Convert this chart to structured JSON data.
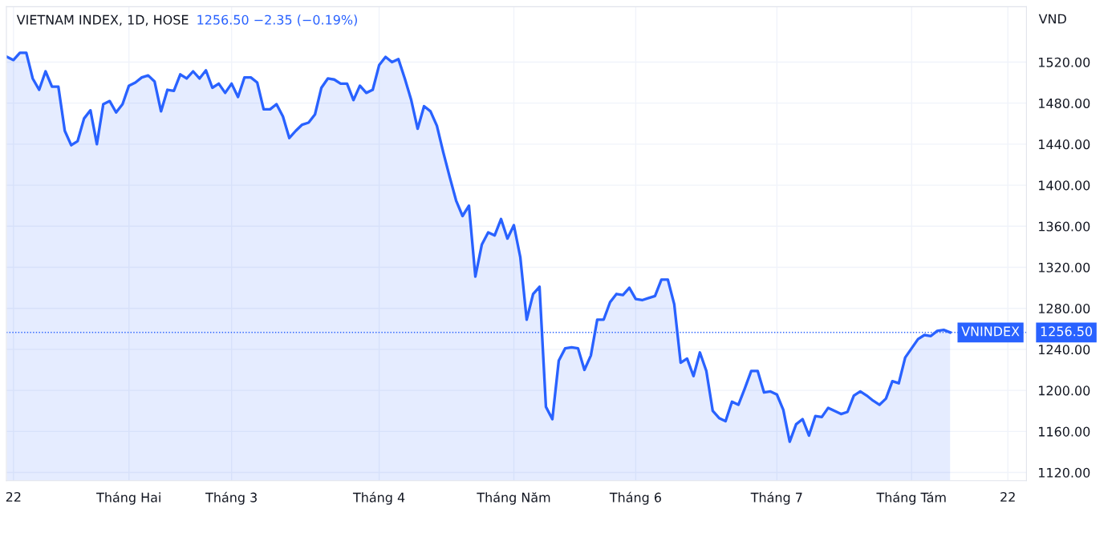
{
  "chart_data": {
    "type": "area",
    "title": "VIETNAM INDEX, 1D, HOSE",
    "subtitle": "1256.50 −2.35 (−0.19%)",
    "ylabel": "VND",
    "categories": [
      null,
      "22",
      null,
      null,
      null,
      null,
      null,
      null,
      null,
      null,
      null,
      null,
      null,
      null,
      null,
      null,
      null,
      null,
      null,
      "Tháng Hai",
      null,
      null,
      null,
      null,
      null,
      null,
      null,
      null,
      null,
      null,
      null,
      null,
      null,
      null,
      null,
      "Tháng 3",
      null,
      null,
      null,
      null,
      null,
      null,
      null,
      null,
      null,
      null,
      null,
      null,
      null,
      null,
      null,
      null,
      null,
      null,
      null,
      null,
      null,
      null,
      "Tháng 4",
      null,
      null,
      null,
      null,
      null,
      null,
      null,
      null,
      null,
      null,
      null,
      null,
      null,
      null,
      null,
      null,
      null,
      null,
      null,
      null,
      "Tháng Năm",
      null,
      null,
      null,
      null,
      null,
      null,
      null,
      null,
      null,
      null,
      null,
      null,
      null,
      null,
      null,
      null,
      null,
      null,
      "Tháng 6",
      null,
      null,
      null,
      null,
      null,
      null,
      null,
      null,
      null,
      null,
      null,
      null,
      null,
      null,
      null,
      null,
      null,
      null,
      null,
      null,
      null,
      "Tháng 7",
      null,
      null,
      null,
      null,
      null,
      null,
      null,
      null,
      null,
      null,
      null,
      null,
      null,
      null,
      null,
      null,
      null,
      null,
      null,
      null,
      "Tháng Tám",
      null,
      null,
      null,
      null,
      null,
      null,
      null,
      null,
      null,
      null,
      null,
      null,
      null,
      null,
      "22",
      null,
      null
    ],
    "series": [
      {
        "color": "#2962ff",
        "values": [
          1525,
          1522,
          1529,
          1529,
          1504,
          1493,
          1511,
          1496,
          1496,
          1453,
          1439,
          1443,
          1465,
          1473,
          1440,
          1479,
          1482,
          1471,
          1479,
          1497,
          1500,
          1505,
          1507,
          1501,
          1472,
          1493,
          1492,
          1508,
          1504,
          1511,
          1504,
          1512,
          1495,
          1499,
          1490,
          1499,
          1486,
          1505,
          1505,
          1500,
          1474,
          1474,
          1479,
          1467,
          1446,
          1453,
          1459,
          1461,
          1469,
          1495,
          1504,
          1503,
          1499,
          1499,
          1483,
          1497,
          1490,
          1493,
          1517,
          1525,
          1520,
          1523,
          1504,
          1483,
          1455,
          1477,
          1472,
          1458,
          1432,
          1408,
          1385,
          1370,
          1380,
          1311,
          1342,
          1354,
          1351,
          1367,
          1348,
          1361,
          1330,
          1269,
          1294,
          1301,
          1184,
          1172,
          1229,
          1241,
          1242,
          1241,
          1220,
          1234,
          1269,
          1269,
          1286,
          1294,
          1293,
          1300,
          1289,
          1288,
          1290,
          1292,
          1308,
          1308,
          1284,
          1227,
          1231,
          1214,
          1237,
          1219,
          1180,
          1173,
          1170,
          1189,
          1186,
          1202,
          1219,
          1219,
          1198,
          1199,
          1196,
          1181,
          1150,
          1167,
          1172,
          1156,
          1175,
          1174,
          1183,
          1180,
          1177,
          1179,
          1195,
          1199,
          1195,
          1190,
          1186,
          1192,
          1209,
          1207,
          1232,
          1241,
          1250,
          1254,
          1253,
          1258,
          1259,
          1256.5,
          null,
          null,
          null,
          null,
          null,
          null,
          null,
          null,
          null,
          null,
          null
        ]
      }
    ],
    "ylim": [
      1112,
      1574
    ],
    "yticks": [
      {
        "value": 1120,
        "label": "1120.00"
      },
      {
        "value": 1160,
        "label": "1160.00"
      },
      {
        "value": 1200,
        "label": "1200.00"
      },
      {
        "value": 1240,
        "label": "1240.00"
      },
      {
        "value": 1280,
        "label": "1280.00"
      },
      {
        "value": 1320,
        "label": "1320.00"
      },
      {
        "value": 1360,
        "label": "1360.00"
      },
      {
        "value": 1400,
        "label": "1400.00"
      },
      {
        "value": 1440,
        "label": "1440.00"
      },
      {
        "value": 1480,
        "label": "1480.00"
      },
      {
        "value": 1520,
        "label": "1520.00"
      }
    ],
    "ref_lines": [
      {
        "axis": "y",
        "value": 1256.5,
        "label": "VNINDEX",
        "color": "#2962ff",
        "line_style": "dotted"
      }
    ],
    "annotations": [
      "1256.50"
    ],
    "grid": true
  }
}
